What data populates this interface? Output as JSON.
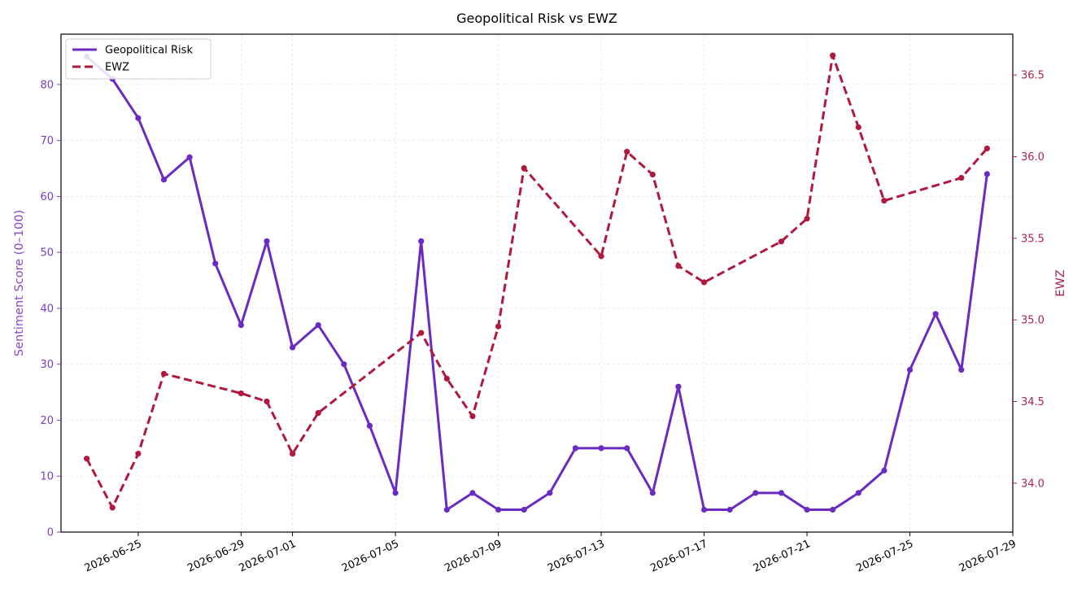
{
  "chart_data": {
    "type": "line",
    "title": "Geopolitical Risk vs EWZ",
    "xlabel": "",
    "ylabel_left": "Sentiment Score (0–100)",
    "ylabel_right": "EWZ",
    "ylim_left": [
      0,
      89
    ],
    "ylim_right": [
      33.7,
      36.75
    ],
    "xlim": [
      "2026-06-22",
      "2026-07-29"
    ],
    "x_ticks": [
      "2026-06-25",
      "2026-06-29",
      "2026-07-01",
      "2026-07-05",
      "2026-07-09",
      "2026-07-13",
      "2026-07-17",
      "2026-07-21",
      "2026-07-25",
      "2026-07-29"
    ],
    "y_ticks_left": [
      0,
      10,
      20,
      30,
      40,
      50,
      60,
      70,
      80
    ],
    "y_ticks_right": [
      34.0,
      34.5,
      35.0,
      35.5,
      36.0,
      36.5
    ],
    "y_tick_labels_right": [
      "34.0",
      "34.5",
      "35.0",
      "35.5",
      "36.0",
      "36.5"
    ],
    "grid": true,
    "legend_position": "upper-left",
    "series": [
      {
        "name": "Geopolitical Risk",
        "axis": "left",
        "color": "#6a2bc4",
        "line_style": "solid",
        "x": [
          "2026-06-23",
          "2026-06-24",
          "2026-06-25",
          "2026-06-26",
          "2026-06-27",
          "2026-06-28",
          "2026-06-29",
          "2026-06-30",
          "2026-07-01",
          "2026-07-02",
          "2026-07-03",
          "2026-07-04",
          "2026-07-05",
          "2026-07-06",
          "2026-07-07",
          "2026-07-08",
          "2026-07-09",
          "2026-07-10",
          "2026-07-11",
          "2026-07-12",
          "2026-07-13",
          "2026-07-14",
          "2026-07-15",
          "2026-07-16",
          "2026-07-17",
          "2026-07-18",
          "2026-07-19",
          "2026-07-20",
          "2026-07-21",
          "2026-07-22",
          "2026-07-23",
          "2026-07-24",
          "2026-07-25",
          "2026-07-26",
          "2026-07-27",
          "2026-07-28"
        ],
        "values": [
          85,
          81,
          74,
          63,
          67,
          48,
          37,
          52,
          33,
          37,
          30,
          19,
          7,
          52,
          4,
          7,
          4,
          4,
          7,
          15,
          15,
          15,
          7,
          26,
          4,
          4,
          7,
          7,
          4,
          4,
          7,
          11,
          29,
          39,
          29,
          64
        ]
      },
      {
        "name": "EWZ",
        "axis": "right",
        "color": "#b0183e",
        "line_style": "dashed",
        "x": [
          "2026-06-23",
          "2026-06-24",
          "2026-06-25",
          "2026-06-26",
          "2026-06-29",
          "2026-06-30",
          "2026-07-01",
          "2026-07-02",
          "2026-07-06",
          "2026-07-07",
          "2026-07-08",
          "2026-07-09",
          "2026-07-10",
          "2026-07-13",
          "2026-07-14",
          "2026-07-15",
          "2026-07-16",
          "2026-07-17",
          "2026-07-20",
          "2026-07-21",
          "2026-07-22",
          "2026-07-23",
          "2026-07-24",
          "2026-07-27",
          "2026-07-28"
        ],
        "values": [
          34.15,
          33.85,
          34.18,
          34.67,
          34.55,
          34.5,
          34.18,
          34.43,
          34.92,
          34.64,
          34.41,
          34.96,
          35.93,
          35.39,
          36.03,
          35.89,
          35.33,
          35.23,
          35.48,
          35.62,
          36.62,
          36.18,
          35.73,
          35.87,
          36.05
        ]
      }
    ]
  }
}
